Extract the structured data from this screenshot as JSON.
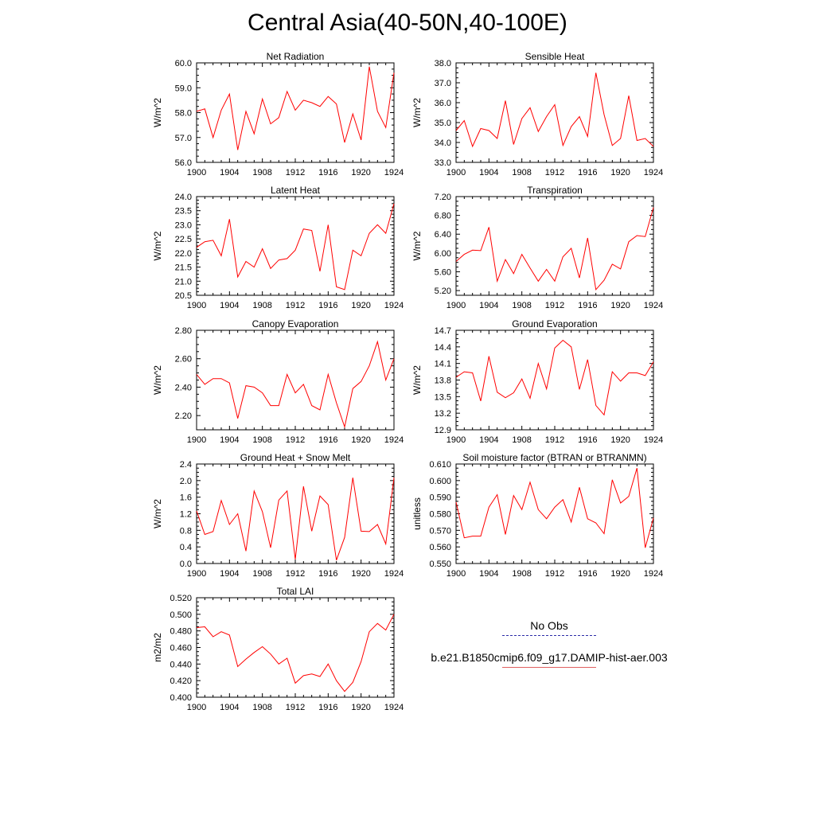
{
  "title": "Central Asia(40-50N,40-100E)",
  "colors": {
    "model": "#ff0000",
    "obs": "#2c2ca8",
    "axis": "#000000"
  },
  "legend": {
    "obs_label": "No Obs",
    "model_label": "b.e21.B1850cmip6.f09_g17.DAMIP-hist-aer.003"
  },
  "chart_data": [
    {
      "type": "line",
      "title": "Net Radiation",
      "xlabel": "",
      "ylabel": "W/m^2",
      "xlim": [
        1900,
        1924
      ],
      "ylim": [
        56.0,
        60.0
      ],
      "xticks": [
        1900,
        1904,
        1908,
        1912,
        1916,
        1920,
        1924
      ],
      "yticks": [
        "56.0",
        "57.0",
        "58.0",
        "59.0",
        "60.0"
      ],
      "x": [
        1900,
        1901,
        1902,
        1903,
        1904,
        1905,
        1906,
        1907,
        1908,
        1909,
        1910,
        1911,
        1912,
        1913,
        1914,
        1915,
        1916,
        1917,
        1918,
        1919,
        1920,
        1921,
        1922,
        1923,
        1924
      ],
      "y": [
        58.05,
        58.15,
        57.0,
        58.1,
        58.75,
        56.5,
        58.05,
        57.15,
        58.55,
        57.55,
        57.8,
        58.85,
        58.1,
        58.5,
        58.4,
        58.25,
        58.65,
        58.35,
        56.8,
        57.95,
        56.9,
        59.85,
        58.05,
        57.4,
        59.6
      ]
    },
    {
      "type": "line",
      "title": "Sensible Heat",
      "xlabel": "",
      "ylabel": "W/m^2",
      "xlim": [
        1900,
        1924
      ],
      "ylim": [
        33.0,
        38.0
      ],
      "xticks": [
        1900,
        1904,
        1908,
        1912,
        1916,
        1920,
        1924
      ],
      "yticks": [
        "33.0",
        "34.0",
        "35.0",
        "36.0",
        "37.0",
        "38.0"
      ],
      "x": [
        1900,
        1901,
        1902,
        1903,
        1904,
        1905,
        1906,
        1907,
        1908,
        1909,
        1910,
        1911,
        1912,
        1913,
        1914,
        1915,
        1916,
        1917,
        1918,
        1919,
        1920,
        1921,
        1922,
        1923,
        1924
      ],
      "y": [
        34.6,
        35.1,
        33.8,
        34.7,
        34.6,
        34.2,
        36.1,
        33.9,
        35.2,
        35.75,
        34.55,
        35.3,
        35.9,
        33.85,
        34.8,
        35.3,
        34.3,
        37.5,
        35.4,
        33.85,
        34.2,
        36.35,
        34.1,
        34.2,
        33.8
      ]
    },
    {
      "type": "line",
      "title": "Latent Heat",
      "xlabel": "",
      "ylabel": "W/m^2",
      "xlim": [
        1900,
        1924
      ],
      "ylim": [
        20.5,
        24.0
      ],
      "xticks": [
        1900,
        1904,
        1908,
        1912,
        1916,
        1920,
        1924
      ],
      "yticks": [
        "20.5",
        "21.0",
        "21.5",
        "22.0",
        "22.5",
        "23.0",
        "23.5",
        "24.0"
      ],
      "x": [
        1900,
        1901,
        1902,
        1903,
        1904,
        1905,
        1906,
        1907,
        1908,
        1909,
        1910,
        1911,
        1912,
        1913,
        1914,
        1915,
        1916,
        1917,
        1918,
        1919,
        1920,
        1921,
        1922,
        1923,
        1924
      ],
      "y": [
        22.2,
        22.4,
        22.45,
        21.9,
        23.2,
        21.15,
        21.7,
        21.5,
        22.15,
        21.45,
        21.75,
        21.8,
        22.1,
        22.85,
        22.8,
        21.35,
        23.0,
        20.8,
        20.7,
        22.1,
        21.9,
        22.7,
        23.0,
        22.7,
        23.75
      ]
    },
    {
      "type": "line",
      "title": "Transpiration",
      "xlabel": "",
      "ylabel": "W/m^2",
      "xlim": [
        1900,
        1924
      ],
      "ylim": [
        5.1,
        7.2
      ],
      "xticks": [
        1900,
        1904,
        1908,
        1912,
        1916,
        1920,
        1924
      ],
      "yticks": [
        "5.20",
        "5.60",
        "6.00",
        "6.40",
        "6.80",
        "7.20"
      ],
      "x": [
        1900,
        1901,
        1902,
        1903,
        1904,
        1905,
        1906,
        1907,
        1908,
        1909,
        1910,
        1911,
        1912,
        1913,
        1914,
        1915,
        1916,
        1917,
        1918,
        1919,
        1920,
        1921,
        1922,
        1923,
        1924
      ],
      "y": [
        5.82,
        5.97,
        6.06,
        6.05,
        6.55,
        5.4,
        5.86,
        5.56,
        5.97,
        5.68,
        5.4,
        5.65,
        5.4,
        5.92,
        6.1,
        5.47,
        6.32,
        5.22,
        5.42,
        5.76,
        5.66,
        6.24,
        6.37,
        6.35,
        6.97
      ]
    },
    {
      "type": "line",
      "title": "Canopy Evaporation",
      "xlabel": "",
      "ylabel": "W/m^2",
      "xlim": [
        1900,
        1924
      ],
      "ylim": [
        2.1,
        2.8
      ],
      "xticks": [
        1900,
        1904,
        1908,
        1912,
        1916,
        1920,
        1924
      ],
      "yticks": [
        "2.20",
        "2.40",
        "2.60",
        "2.80"
      ],
      "x": [
        1900,
        1901,
        1902,
        1903,
        1904,
        1905,
        1906,
        1907,
        1908,
        1909,
        1910,
        1911,
        1912,
        1913,
        1914,
        1915,
        1916,
        1917,
        1918,
        1919,
        1920,
        1921,
        1922,
        1923,
        1924
      ],
      "y": [
        2.49,
        2.42,
        2.46,
        2.46,
        2.43,
        2.18,
        2.41,
        2.4,
        2.36,
        2.27,
        2.27,
        2.49,
        2.36,
        2.42,
        2.27,
        2.24,
        2.49,
        2.29,
        2.12,
        2.39,
        2.44,
        2.55,
        2.72,
        2.45,
        2.6
      ]
    },
    {
      "type": "line",
      "title": "Ground Evaporation",
      "xlabel": "",
      "ylabel": "W/m^2",
      "xlim": [
        1900,
        1924
      ],
      "ylim": [
        12.9,
        14.7
      ],
      "xticks": [
        1900,
        1904,
        1908,
        1912,
        1916,
        1920,
        1924
      ],
      "yticks": [
        "12.9",
        "13.2",
        "13.5",
        "13.8",
        "14.1",
        "14.4",
        "14.7"
      ],
      "x": [
        1900,
        1901,
        1902,
        1903,
        1904,
        1905,
        1906,
        1907,
        1908,
        1909,
        1910,
        1911,
        1912,
        1913,
        1914,
        1915,
        1916,
        1917,
        1918,
        1919,
        1920,
        1921,
        1922,
        1923,
        1924
      ],
      "y": [
        13.85,
        13.95,
        13.93,
        13.42,
        14.23,
        13.58,
        13.48,
        13.57,
        13.82,
        13.47,
        14.1,
        13.64,
        14.38,
        14.52,
        14.4,
        13.63,
        14.17,
        13.34,
        13.17,
        13.95,
        13.78,
        13.93,
        13.93,
        13.88,
        14.13
      ]
    },
    {
      "type": "line",
      "title": "Ground Heat + Snow Melt",
      "xlabel": "",
      "ylabel": "W/m^2",
      "xlim": [
        1900,
        1924
      ],
      "ylim": [
        0.0,
        2.4
      ],
      "xticks": [
        1900,
        1904,
        1908,
        1912,
        1916,
        1920,
        1924
      ],
      "yticks": [
        "0.0",
        "0.4",
        "0.8",
        "1.2",
        "1.6",
        "2.0",
        "2.4"
      ],
      "x": [
        1900,
        1901,
        1902,
        1903,
        1904,
        1905,
        1906,
        1907,
        1908,
        1909,
        1910,
        1911,
        1912,
        1913,
        1914,
        1915,
        1916,
        1917,
        1918,
        1919,
        1920,
        1921,
        1922,
        1923,
        1924
      ],
      "y": [
        1.27,
        0.7,
        0.77,
        1.52,
        0.94,
        1.2,
        0.3,
        1.75,
        1.25,
        0.38,
        1.53,
        1.75,
        0.1,
        1.86,
        0.78,
        1.63,
        1.42,
        0.08,
        0.63,
        2.07,
        0.78,
        0.77,
        0.94,
        0.47,
        2.07
      ]
    },
    {
      "type": "line",
      "title": "Soil moisture factor (BTRAN or BTRANMN)",
      "xlabel": "",
      "ylabel": "unitless",
      "xlim": [
        1900,
        1924
      ],
      "ylim": [
        0.55,
        0.61
      ],
      "xticks": [
        1900,
        1904,
        1908,
        1912,
        1916,
        1920,
        1924
      ],
      "yticks": [
        "0.550",
        "0.560",
        "0.570",
        "0.580",
        "0.590",
        "0.600",
        "0.610"
      ],
      "x": [
        1900,
        1901,
        1902,
        1903,
        1904,
        1905,
        1906,
        1907,
        1908,
        1909,
        1910,
        1911,
        1912,
        1913,
        1914,
        1915,
        1916,
        1917,
        1918,
        1919,
        1920,
        1921,
        1922,
        1923,
        1924
      ],
      "y": [
        0.587,
        0.5655,
        0.5665,
        0.5665,
        0.584,
        0.5915,
        0.5675,
        0.591,
        0.5825,
        0.599,
        0.5825,
        0.577,
        0.584,
        0.5885,
        0.575,
        0.596,
        0.577,
        0.5745,
        0.568,
        0.6005,
        0.5865,
        0.5905,
        0.6075,
        0.5595,
        0.5775
      ]
    },
    {
      "type": "line",
      "title": "Total LAI",
      "xlabel": "",
      "ylabel": "m2/m2",
      "xlim": [
        1900,
        1924
      ],
      "ylim": [
        0.4,
        0.52
      ],
      "xticks": [
        1900,
        1904,
        1908,
        1912,
        1916,
        1920,
        1924
      ],
      "yticks": [
        "0.400",
        "0.420",
        "0.440",
        "0.460",
        "0.480",
        "0.500",
        "0.520"
      ],
      "x": [
        1900,
        1901,
        1902,
        1903,
        1904,
        1905,
        1906,
        1907,
        1908,
        1909,
        1910,
        1911,
        1912,
        1913,
        1914,
        1915,
        1916,
        1917,
        1918,
        1919,
        1920,
        1921,
        1922,
        1923,
        1924
      ],
      "y": [
        0.484,
        0.485,
        0.473,
        0.479,
        0.475,
        0.437,
        0.446,
        0.454,
        0.461,
        0.452,
        0.44,
        0.447,
        0.417,
        0.426,
        0.428,
        0.425,
        0.44,
        0.42,
        0.407,
        0.418,
        0.443,
        0.479,
        0.489,
        0.481,
        0.5
      ]
    }
  ]
}
